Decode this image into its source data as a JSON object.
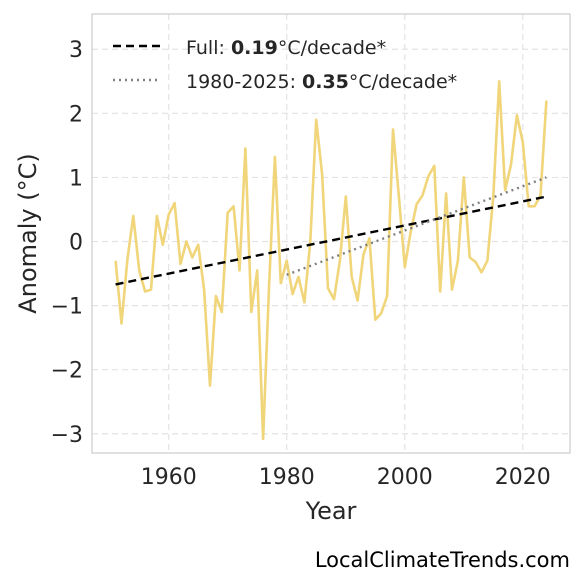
{
  "chart_data": {
    "type": "line",
    "xlabel": "Year",
    "ylabel": "Anomaly (°C)",
    "xlim": [
      1947,
      2028
    ],
    "ylim": [
      -3.3,
      3.55
    ],
    "xticks": [
      1960,
      1980,
      2000,
      2020
    ],
    "yticks": [
      -3,
      -2,
      -1,
      0,
      1,
      2,
      3
    ],
    "grid": true,
    "legend_position": "top-left",
    "series": [
      {
        "name": "",
        "color": "#f0d57a",
        "style": "solid",
        "x": [
          1951,
          1952,
          1953,
          1954,
          1955,
          1956,
          1957,
          1958,
          1959,
          1960,
          1961,
          1962,
          1963,
          1964,
          1965,
          1966,
          1967,
          1968,
          1969,
          1970,
          1971,
          1972,
          1973,
          1974,
          1975,
          1976,
          1977,
          1978,
          1979,
          1980,
          1981,
          1982,
          1983,
          1984,
          1985,
          1986,
          1987,
          1988,
          1989,
          1990,
          1991,
          1992,
          1993,
          1994,
          1995,
          1996,
          1997,
          1998,
          1999,
          2000,
          2001,
          2002,
          2003,
          2004,
          2005,
          2006,
          2007,
          2008,
          2009,
          2010,
          2011,
          2012,
          2013,
          2014,
          2015,
          2016,
          2017,
          2018,
          2019,
          2020,
          2021,
          2022,
          2023,
          2024
        ],
        "y": [
          -0.3,
          -1.28,
          -0.28,
          0.4,
          -0.45,
          -0.78,
          -0.75,
          0.4,
          -0.05,
          0.42,
          0.6,
          -0.35,
          0.0,
          -0.25,
          -0.05,
          -0.75,
          -2.25,
          -0.85,
          -1.1,
          0.45,
          0.55,
          -0.45,
          1.45,
          -1.1,
          -0.45,
          -3.08,
          -0.72,
          1.32,
          -0.65,
          -0.3,
          -0.82,
          -0.55,
          -0.95,
          0.0,
          1.9,
          1.05,
          -0.73,
          -0.9,
          -0.3,
          0.7,
          -0.55,
          -0.92,
          -0.2,
          0.05,
          -1.22,
          -1.12,
          -0.85,
          1.75,
          0.7,
          -0.4,
          0.15,
          0.58,
          0.72,
          1.02,
          1.18,
          -0.78,
          0.75,
          -0.75,
          -0.3,
          1.0,
          -0.25,
          -0.32,
          -0.48,
          -0.3,
          0.7,
          2.5,
          0.8,
          1.2,
          1.97,
          1.55,
          0.55,
          0.55,
          0.72,
          2.2
        ]
      },
      {
        "name": "Full: 0.19°C/decade*",
        "color": "#000000",
        "style": "dashed",
        "x": [
          1951,
          2024
        ],
        "y": [
          -0.67,
          0.7
        ]
      },
      {
        "name": "1980-2025: 0.35°C/decade*",
        "color": "#808080",
        "style": "dotted",
        "x": [
          1980,
          2024
        ],
        "y": [
          -0.52,
          1.0
        ]
      }
    ]
  },
  "legend": [
    {
      "prefix": "Full: ",
      "bold": "0.19",
      "suffix": "°C/decade*"
    },
    {
      "prefix": "1980-2025: ",
      "bold": "0.35",
      "suffix": "°C/decade*"
    }
  ],
  "credit": "LocalClimateTrends.com"
}
